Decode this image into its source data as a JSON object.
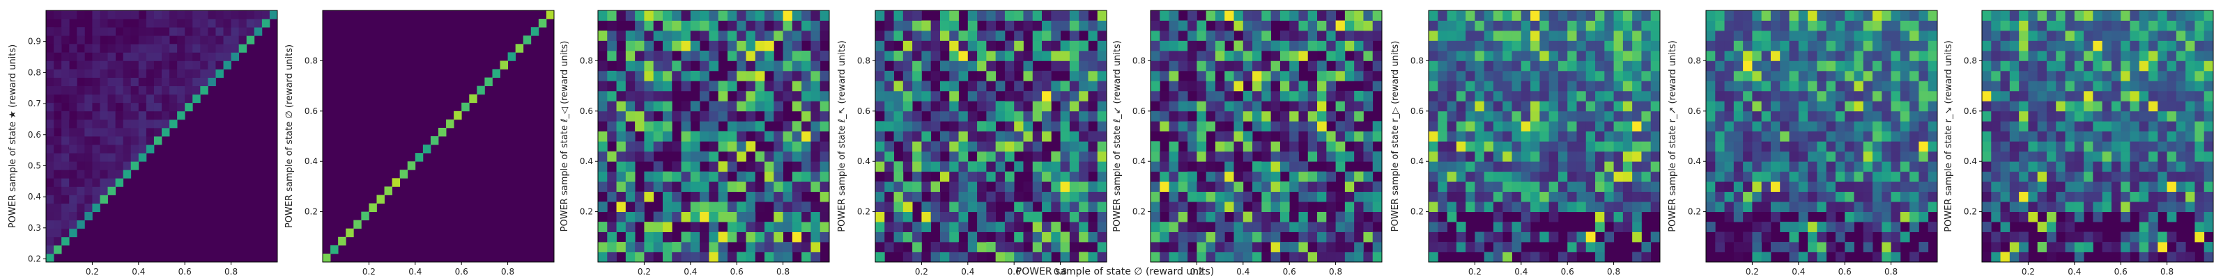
{
  "figure": {
    "shared_xlabel": "POWER sample of state ∅ (reward units)"
  },
  "chart_data": [
    {
      "type": "heatmap",
      "ylabel": "POWER sample of state ★ (reward units)",
      "xlim": [
        0.0,
        1.0
      ],
      "ylim": [
        0.19,
        1.0
      ],
      "xticks": [
        0.2,
        0.4,
        0.6,
        0.8
      ],
      "yticks": [
        0.2,
        0.3,
        0.4,
        0.5,
        0.6,
        0.7,
        0.8,
        0.9
      ],
      "pattern": "upper-triangle",
      "bins": 30,
      "grid": false,
      "colormap": "viridis"
    },
    {
      "type": "heatmap",
      "ylabel": "POWER sample of state ∅ (reward units)",
      "xlim": [
        0.0,
        1.0
      ],
      "ylim": [
        0.0,
        1.0
      ],
      "xticks": [
        0.2,
        0.4,
        0.6,
        0.8
      ],
      "yticks": [
        0.2,
        0.4,
        0.6,
        0.8
      ],
      "pattern": "diagonal",
      "bins": 30,
      "grid": false,
      "colormap": "viridis"
    },
    {
      "type": "heatmap",
      "ylabel": "POWER sample of state ℓ_◁ (reward units)",
      "xlim": [
        0.0,
        1.0
      ],
      "ylim": [
        0.0,
        1.0
      ],
      "xticks": [
        0.2,
        0.4,
        0.6,
        0.8
      ],
      "yticks": [
        0.2,
        0.4,
        0.6,
        0.8
      ],
      "pattern": "scatter",
      "bins": 25,
      "grid": false,
      "colormap": "viridis"
    },
    {
      "type": "heatmap",
      "ylabel": "POWER sample of state ℓ_↖ (reward units)",
      "xlim": [
        0.0,
        1.0
      ],
      "ylim": [
        0.0,
        1.0
      ],
      "xticks": [
        0.2,
        0.4,
        0.6,
        0.8
      ],
      "yticks": [
        0.2,
        0.4,
        0.6,
        0.8
      ],
      "pattern": "scatter",
      "bins": 25,
      "grid": false,
      "colormap": "viridis"
    },
    {
      "type": "heatmap",
      "ylabel": "POWER sample of state ℓ_↙ (reward units)",
      "xlim": [
        0.0,
        1.0
      ],
      "ylim": [
        0.0,
        1.0
      ],
      "xticks": [
        0.2,
        0.4,
        0.6,
        0.8
      ],
      "yticks": [
        0.2,
        0.4,
        0.6,
        0.8
      ],
      "pattern": "scatter",
      "bins": 25,
      "grid": false,
      "colormap": "viridis"
    },
    {
      "type": "heatmap",
      "ylabel": "POWER sample of state r_▷ (reward units)",
      "xlim": [
        0.0,
        1.0
      ],
      "ylim": [
        0.0,
        1.0
      ],
      "xticks": [
        0.2,
        0.4,
        0.6,
        0.8
      ],
      "yticks": [
        0.2,
        0.4,
        0.6,
        0.8
      ],
      "pattern": "scatter-rising",
      "bins": 25,
      "grid": false,
      "colormap": "viridis"
    },
    {
      "type": "heatmap",
      "ylabel": "POWER sample of state r_↗ (reward units)",
      "xlim": [
        0.0,
        1.0
      ],
      "ylim": [
        0.0,
        1.0
      ],
      "xticks": [
        0.2,
        0.4,
        0.6,
        0.8
      ],
      "yticks": [
        0.2,
        0.4,
        0.6,
        0.8
      ],
      "pattern": "scatter-rising",
      "bins": 25,
      "grid": false,
      "colormap": "viridis"
    },
    {
      "type": "heatmap",
      "ylabel": "POWER sample of state r_↘ (reward units)",
      "xlim": [
        0.0,
        1.0
      ],
      "ylim": [
        0.0,
        1.0
      ],
      "xticks": [
        0.2,
        0.4,
        0.6,
        0.8
      ],
      "yticks": [
        0.2,
        0.4,
        0.6,
        0.8
      ],
      "pattern": "scatter-rising",
      "bins": 25,
      "grid": false,
      "colormap": "viridis"
    }
  ]
}
